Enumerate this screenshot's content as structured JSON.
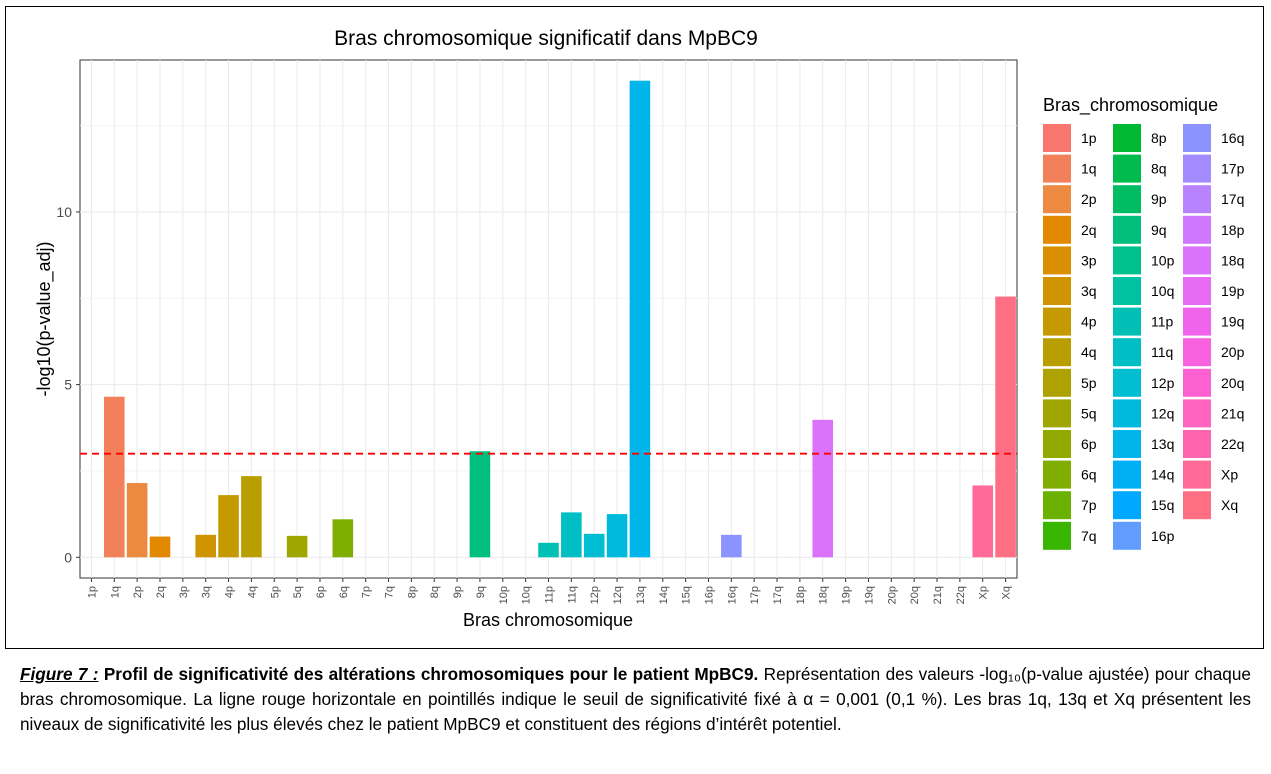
{
  "chart_data": {
    "type": "bar",
    "title": "Bras chromosomique significatif dans MpBC9",
    "xlabel": "Bras chromosomique",
    "ylabel": "-log10(p-value_adj)",
    "legend_title": "Bras_chromosomique",
    "legend_placement": "right",
    "grid": true,
    "ylim": [
      -0.6,
      14.4
    ],
    "yticks": [
      0,
      5,
      10
    ],
    "threshold": 3,
    "threshold_color": "#ff0000",
    "categories": [
      "1p",
      "1q",
      "2p",
      "2q",
      "3p",
      "3q",
      "4p",
      "4q",
      "5p",
      "5q",
      "6p",
      "6q",
      "7p",
      "7q",
      "8p",
      "8q",
      "9p",
      "9q",
      "10p",
      "10q",
      "11p",
      "11q",
      "12p",
      "12q",
      "13q",
      "14q",
      "15q",
      "16p",
      "16q",
      "17p",
      "17q",
      "18p",
      "18q",
      "19p",
      "19q",
      "20p",
      "20q",
      "21q",
      "22q",
      "Xp",
      "Xq"
    ],
    "x_axis_order": [
      "1p",
      "1q",
      "2p",
      "2q",
      "3p",
      "3q",
      "4p",
      "4q",
      "5p",
      "5q",
      "6p",
      "6q",
      "7p",
      "7q",
      "8p",
      "8q",
      "9p",
      "9q",
      "10p",
      "10q",
      "11p",
      "11q",
      "12p",
      "12q",
      "13q",
      "14q",
      "15q",
      "16p",
      "16q",
      "17p",
      "17q",
      "18p",
      "18q",
      "19p",
      "19q",
      "20p",
      "20q",
      "21q",
      "22q",
      "Xp",
      "Xq"
    ],
    "values": [
      0,
      4.65,
      2.15,
      0.6,
      0,
      0.65,
      1.8,
      2.35,
      0,
      0.62,
      0,
      1.1,
      0,
      0,
      0,
      0,
      0,
      3.07,
      0,
      0,
      0.42,
      1.3,
      0.68,
      1.25,
      13.8,
      0,
      0,
      0,
      0.65,
      0,
      0,
      0,
      3.98,
      0,
      0,
      0,
      0,
      0,
      0,
      2.08,
      7.55
    ],
    "colors": [
      "#F8766D",
      "#F2805A",
      "#EC8A42",
      "#E38900",
      "#DA8F00",
      "#D09400",
      "#C59900",
      "#B99E00",
      "#ADA200",
      "#9FA600",
      "#90AA00",
      "#7FAE00",
      "#6BB100",
      "#39B600",
      "#00B933",
      "#00BB4E",
      "#00BD63",
      "#00BF7D",
      "#00C08D",
      "#00C1A2",
      "#00C0B5",
      "#00BFC4",
      "#00BDD2",
      "#00BADE",
      "#00B5EA",
      "#00AFF4",
      "#00A8FF",
      "#619CFF",
      "#8B93FF",
      "#A38BFF",
      "#B983FF",
      "#CF78FF",
      "#DB72FB",
      "#E76BF3",
      "#F064EC",
      "#F862DF",
      "#FD61D1",
      "#FF64BF",
      "#FF65AE",
      "#FF6A98",
      "#FF6F84"
    ]
  },
  "caption": {
    "figure_label": "Figure 7 :",
    "title": "Profil de significativité des altérations chromosomiques pour le patient MpBC9.",
    "body": "Représentation des valeurs -log₁₀(p-value ajustée) pour chaque bras chromosomique. La ligne rouge horizontale en pointillés indique le seuil de significativité fixé à α = 0,001 (0,1 %). Les bras 1q, 13q et Xq présentent les niveaux de significativité les plus élevés chez le patient MpBC9 et constituent des régions d’intérêt potentiel."
  }
}
